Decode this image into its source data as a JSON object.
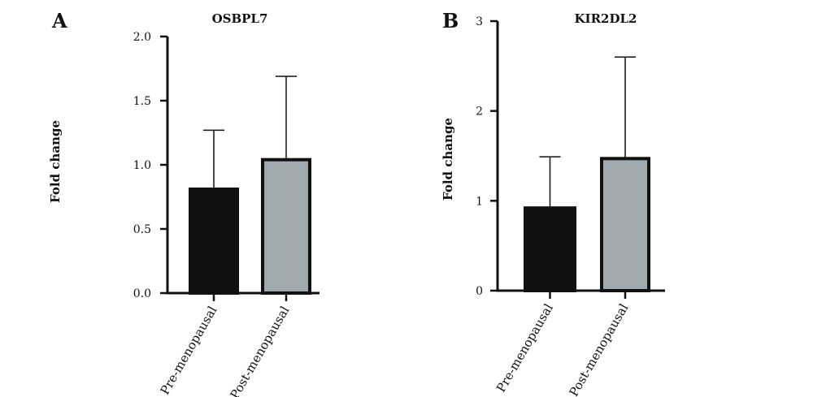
{
  "colors": {
    "pre": "#111111",
    "post": "#a0a9ad",
    "stroke": "#111111"
  },
  "chart_data": [
    {
      "type": "bar",
      "panel": "A",
      "title": "OSBPL7",
      "ylabel": "Fold change",
      "xlabel": "",
      "categories": [
        "Pre-menopausal",
        "Post-menopausal"
      ],
      "values": [
        0.81,
        1.04
      ],
      "error_upper": [
        1.27,
        1.69
      ],
      "ylim": [
        0,
        2.0
      ],
      "yticks": [
        0.0,
        0.5,
        1.0,
        1.5,
        2.0
      ],
      "ytick_labels": [
        "0.0",
        "0.5",
        "1.0",
        "1.5",
        "2.0"
      ],
      "grid": false,
      "legend": "none"
    },
    {
      "type": "bar",
      "panel": "B",
      "title": "KIR2DL2",
      "ylabel": "Fold change",
      "xlabel": "",
      "categories": [
        "Pre-menopausal",
        "Post-menopausal"
      ],
      "values": [
        0.92,
        1.47
      ],
      "error_upper": [
        1.49,
        2.6
      ],
      "ylim": [
        0,
        3
      ],
      "yticks": [
        0,
        1,
        2,
        3
      ],
      "ytick_labels": [
        "0",
        "1",
        "2",
        "3"
      ],
      "grid": false,
      "legend": "none"
    }
  ]
}
